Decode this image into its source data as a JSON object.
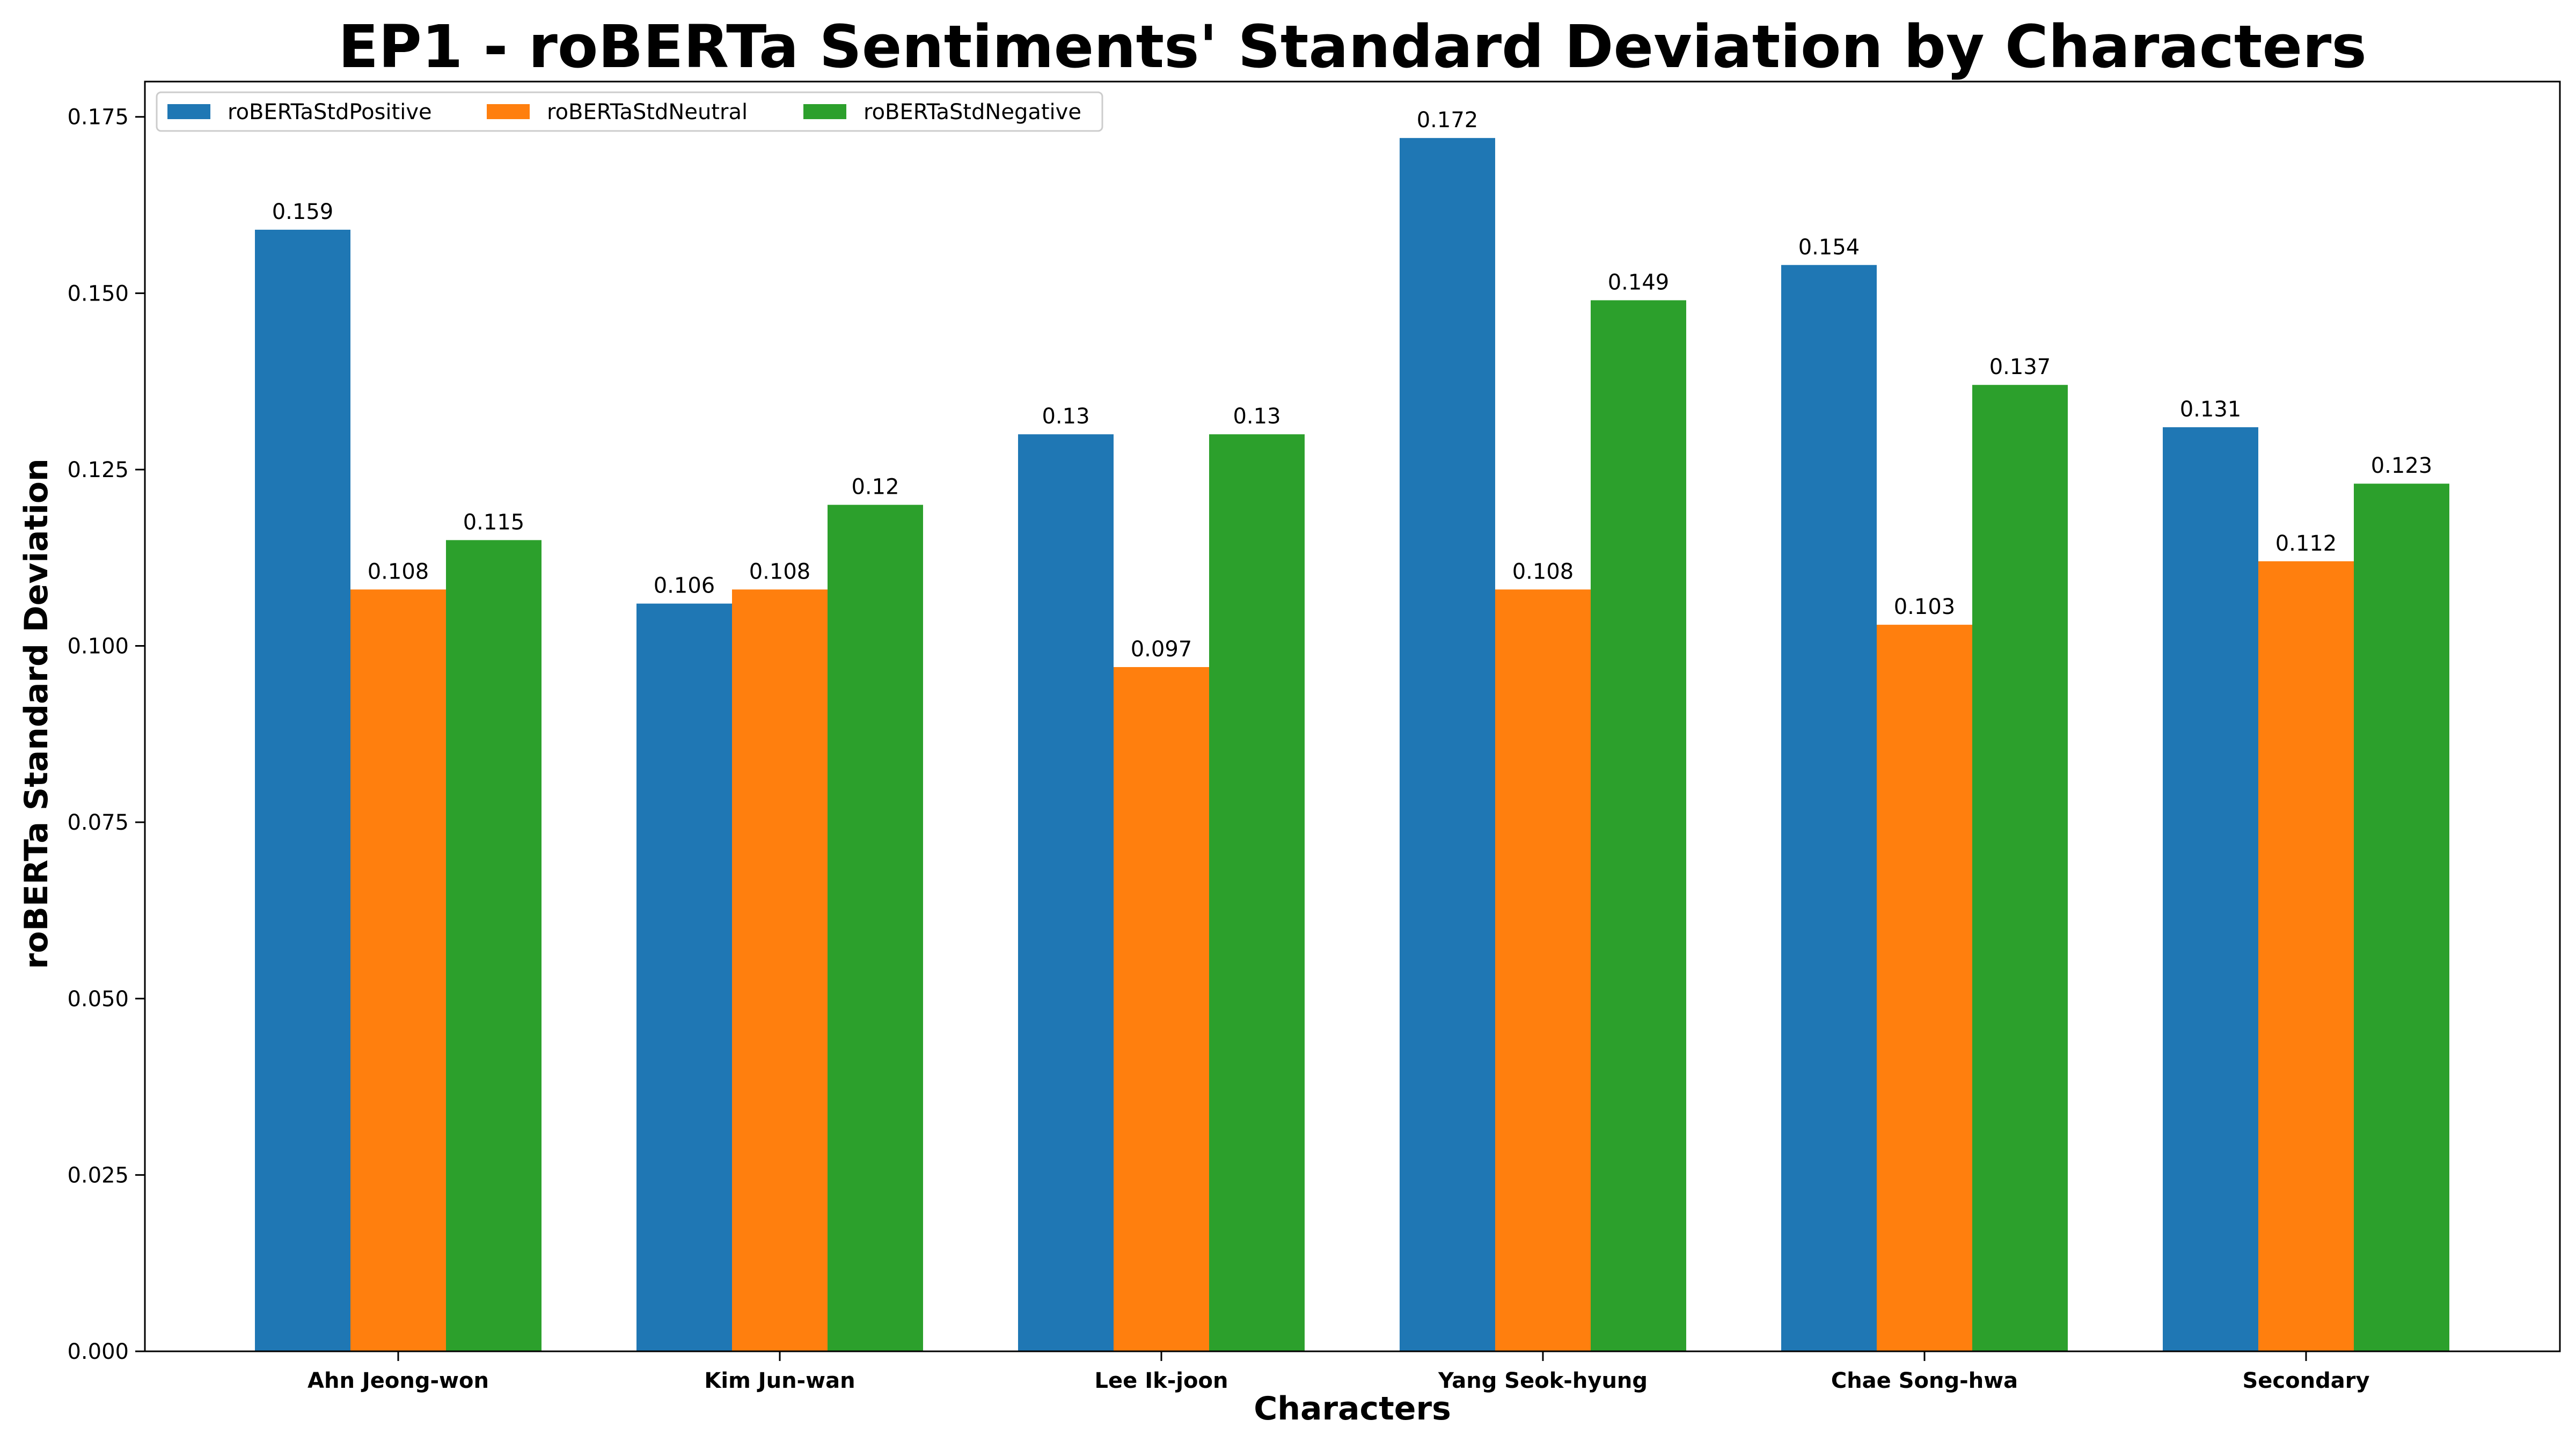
{
  "chart_data": {
    "type": "bar",
    "title": "EP1 - roBERTa Sentiments' Standard Deviation by Characters",
    "xlabel": "Characters",
    "ylabel": "roBERTa Standard Deviation",
    "categories": [
      "Ahn Jeong-won",
      "Kim Jun-wan",
      "Lee Ik-joon",
      "Yang Seok-hyung",
      "Chae Song-hwa",
      "Secondary"
    ],
    "series": [
      {
        "name": "roBERTaStdPositive",
        "color": "#1f77b4",
        "values": [
          0.159,
          0.106,
          0.13,
          0.172,
          0.154,
          0.131
        ]
      },
      {
        "name": "roBERTaStdNeutral",
        "color": "#ff7f0e",
        "values": [
          0.108,
          0.108,
          0.097,
          0.108,
          0.103,
          0.112
        ]
      },
      {
        "name": "roBERTaStdNegative",
        "color": "#2ca02c",
        "values": [
          0.115,
          0.12,
          0.13,
          0.149,
          0.137,
          0.123
        ]
      }
    ],
    "ylim": [
      0,
      0.18
    ],
    "yticks": [
      "0.000",
      "0.025",
      "0.050",
      "0.075",
      "0.100",
      "0.125",
      "0.150",
      "0.175"
    ],
    "grid": false,
    "legend_position": "top-left"
  }
}
